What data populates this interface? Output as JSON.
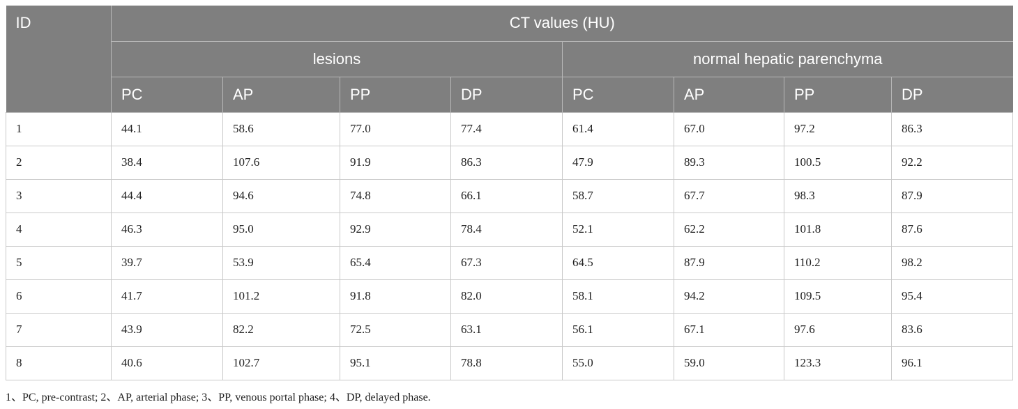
{
  "header": {
    "id_label": "ID",
    "main_title": "CT values (HU)",
    "group_lesions": "lesions",
    "group_normal": "normal hepatic parenchyma",
    "phases": [
      "PC",
      "AP",
      "PP",
      "DP",
      "PC",
      "AP",
      "PP",
      "DP"
    ]
  },
  "rows": [
    {
      "id": "1",
      "values": [
        "44.1",
        "58.6",
        "77.0",
        "77.4",
        "61.4",
        "67.0",
        "97.2",
        "86.3"
      ]
    },
    {
      "id": "2",
      "values": [
        "38.4",
        "107.6",
        "91.9",
        "86.3",
        "47.9",
        "89.3",
        "100.5",
        "92.2"
      ]
    },
    {
      "id": "3",
      "values": [
        "44.4",
        "94.6",
        "74.8",
        "66.1",
        "58.7",
        "67.7",
        "98.3",
        "87.9"
      ]
    },
    {
      "id": "4",
      "values": [
        "46.3",
        "95.0",
        "92.9",
        "78.4",
        "52.1",
        "62.2",
        "101.8",
        "87.6"
      ]
    },
    {
      "id": "5",
      "values": [
        "39.7",
        "53.9",
        "65.4",
        "67.3",
        "64.5",
        "87.9",
        "110.2",
        "98.2"
      ]
    },
    {
      "id": "6",
      "values": [
        "41.7",
        "101.2",
        "91.8",
        "82.0",
        "58.1",
        "94.2",
        "109.5",
        "95.4"
      ]
    },
    {
      "id": "7",
      "values": [
        "43.9",
        "82.2",
        "72.5",
        "63.1",
        "56.1",
        "67.1",
        "97.6",
        "83.6"
      ]
    },
    {
      "id": "8",
      "values": [
        "40.6",
        "102.7",
        "95.1",
        "78.8",
        "55.0",
        "59.0",
        "123.3",
        "96.1"
      ]
    }
  ],
  "footnote": "1、PC, pre-contrast; 2、AP, arterial phase; 3、PP, venous portal phase; 4、DP, delayed phase.",
  "colors": {
    "header_bg": "#7f7f7f",
    "header_text": "#ffffff",
    "grid": "#c9c9c9"
  }
}
